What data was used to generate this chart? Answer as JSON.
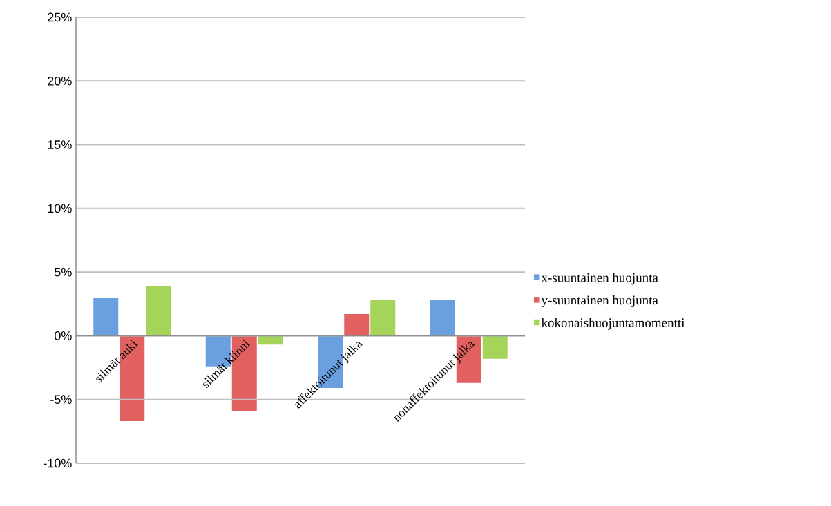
{
  "chart_data": {
    "type": "bar",
    "categories": [
      "silmät auki",
      "silmät kiinni",
      "affektoitunut jalka",
      "nonaffektoitunut jalka"
    ],
    "series": [
      {
        "name": "x-suuntainen huojunta",
        "color": "#6a9fe0",
        "values": [
          3.0,
          -2.4,
          -4.1,
          2.8
        ]
      },
      {
        "name": "y-suuntainen huojunta",
        "color": "#e36060",
        "values": [
          -6.7,
          -5.9,
          1.7,
          -3.7
        ]
      },
      {
        "name": "kokonaishuojuntamomentti",
        "color": "#a5d45a",
        "values": [
          3.9,
          -0.7,
          2.8,
          -1.8
        ]
      }
    ],
    "ylim": [
      -10,
      25
    ],
    "yticks": [
      {
        "value": -10,
        "label": "-10%"
      },
      {
        "value": -5,
        "label": "-5%"
      },
      {
        "value": 0,
        "label": "0%"
      },
      {
        "value": 5,
        "label": "5%"
      },
      {
        "value": 10,
        "label": "10%"
      },
      {
        "value": 15,
        "label": "15%"
      },
      {
        "value": 20,
        "label": "20%"
      },
      {
        "value": 25,
        "label": "25%"
      }
    ],
    "grid": "y",
    "legend": "right"
  }
}
